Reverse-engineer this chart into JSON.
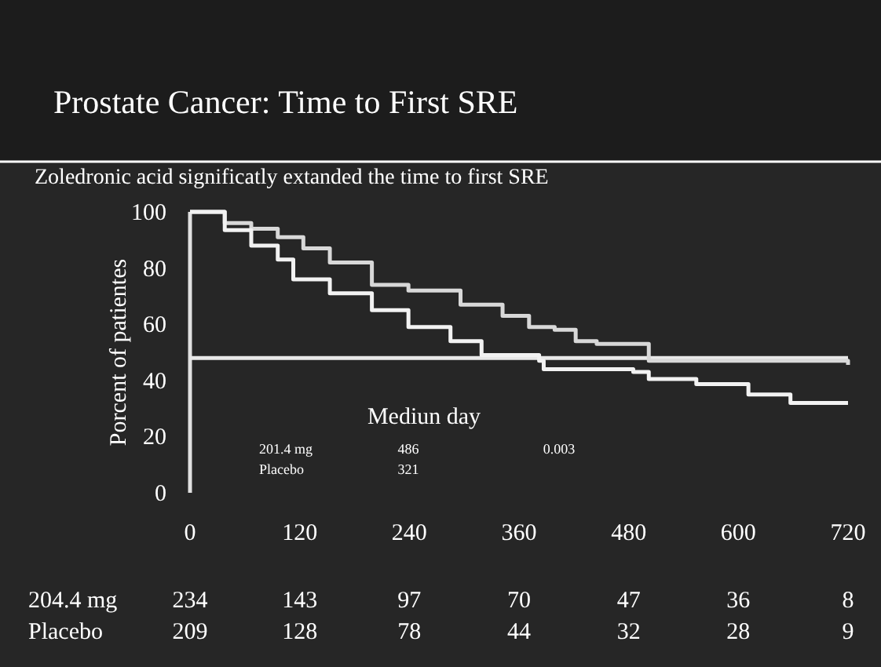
{
  "chart_data": {
    "type": "step",
    "title": "Prostate Cancer: Time to First SRE",
    "subtitle": "Zoledronic acid significatly extanded the time to first SRE",
    "ylabel": "Porcent of patientes",
    "series": [
      {
        "color": "#d8d8d8",
        "x": [
          0,
          38,
          67,
          96,
          124,
          153,
          199,
          239,
          296,
          342,
          371,
          399,
          422,
          445,
          485,
          502,
          720
        ],
        "values": [
          100,
          96,
          94,
          91,
          87,
          82,
          74,
          72,
          67,
          63,
          59,
          58,
          54,
          53,
          53,
          47,
          45.5
        ]
      },
      {
        "color": "#f2f2f2",
        "x": [
          0,
          38,
          67,
          96,
          113,
          153,
          199,
          239,
          285,
          319,
          382,
          387,
          485,
          502,
          554,
          611,
          657,
          720
        ],
        "values": [
          100,
          93.5,
          88,
          83,
          76,
          71,
          65,
          59,
          54,
          49,
          47,
          44,
          43,
          40.5,
          38.7,
          35,
          32,
          32
        ]
      }
    ],
    "xlim": [
      0,
      720
    ],
    "xticks": [
      0,
      120,
      240,
      360,
      480,
      600,
      720
    ],
    "ylim": [
      0,
      100
    ],
    "yticks": [
      0,
      20,
      40,
      60,
      80,
      100
    ],
    "ref_lines": [
      {
        "axis": "y",
        "value": 48,
        "color": "#e8e8e8"
      }
    ],
    "annotations": [
      "Mediun day",
      "201.4 mg",
      "486",
      "0.003",
      "Placebo",
      "321",
      "204.4 mg",
      "234",
      "143",
      "97",
      "70",
      "47",
      "36",
      "8",
      "Placebo",
      "209",
      "128",
      "78",
      "44",
      "32",
      "28",
      "9"
    ]
  }
}
